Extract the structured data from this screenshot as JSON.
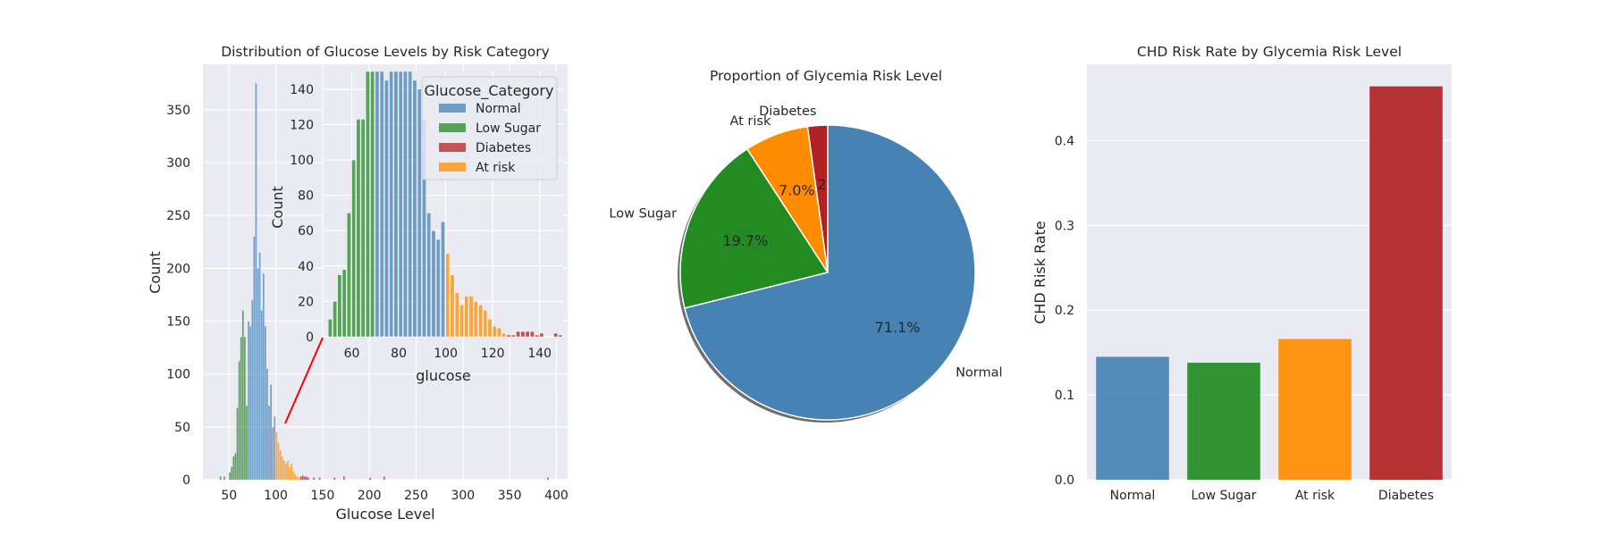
{
  "chart_data": [
    {
      "type": "bar",
      "title": "Distribution of Glucose Levels by Risk Category",
      "xlabel": "Glucose Level",
      "ylabel": "Count",
      "xlim": [
        22,
        412
      ],
      "ylim": [
        0,
        393
      ],
      "xticks": [
        50,
        100,
        150,
        200,
        250,
        300,
        350,
        400
      ],
      "yticks": [
        0,
        50,
        100,
        150,
        200,
        250,
        300,
        350
      ],
      "bin_width": 2,
      "series": [
        {
          "name": "Normal",
          "color": "#4682b4",
          "bins": [
            [
              70,
              150
            ],
            [
              72,
              145
            ],
            [
              74,
              170
            ],
            [
              76,
              230
            ],
            [
              78,
              375
            ],
            [
              80,
              200
            ],
            [
              82,
              215
            ],
            [
              84,
              160
            ],
            [
              86,
              195
            ],
            [
              88,
              145
            ],
            [
              90,
              105
            ],
            [
              92,
              70
            ],
            [
              94,
              90
            ],
            [
              96,
              50
            ],
            [
              98,
              60
            ]
          ]
        },
        {
          "name": "Low Sugar",
          "color": "#228b22",
          "bins": [
            [
              40,
              3
            ],
            [
              44,
              3
            ],
            [
              50,
              7
            ],
            [
              52,
              12
            ],
            [
              54,
              22
            ],
            [
              56,
              25
            ],
            [
              58,
              68
            ],
            [
              60,
              112
            ],
            [
              62,
              135
            ],
            [
              64,
              160
            ],
            [
              66,
              135
            ],
            [
              68,
              70
            ]
          ]
        },
        {
          "name": "Diabetes",
          "color": "#b22222",
          "bins": [
            [
              126,
              3
            ],
            [
              128,
              4
            ],
            [
              130,
              3
            ],
            [
              132,
              3
            ],
            [
              134,
              2
            ],
            [
              140,
              2
            ],
            [
              146,
              2
            ],
            [
              162,
              2
            ],
            [
              172,
              3
            ],
            [
              200,
              2
            ],
            [
              215,
              3
            ],
            [
              390,
              2
            ]
          ]
        },
        {
          "name": "At risk",
          "color": "#ff8c00",
          "bins": [
            [
              100,
              45
            ],
            [
              102,
              35
            ],
            [
              104,
              28
            ],
            [
              106,
              22
            ],
            [
              108,
              18
            ],
            [
              110,
              15
            ],
            [
              112,
              18
            ],
            [
              114,
              12
            ],
            [
              116,
              15
            ],
            [
              118,
              8
            ],
            [
              120,
              5
            ],
            [
              122,
              3
            ],
            [
              124,
              2
            ]
          ]
        }
      ],
      "inset": {
        "xlabel": "glucose",
        "ylabel": "Count",
        "xlim": [
          48,
          150
        ],
        "ylim": [
          0,
          150
        ],
        "xticks": [
          60,
          80,
          100,
          120,
          140
        ],
        "yticks": [
          0,
          20,
          40,
          60,
          80,
          100,
          120,
          140
        ],
        "bin_width": 2,
        "bins": [
          {
            "x": 50,
            "y": 10,
            "c": "Low Sugar"
          },
          {
            "x": 52,
            "y": 20,
            "c": "Low Sugar"
          },
          {
            "x": 54,
            "y": 35,
            "c": "Low Sugar"
          },
          {
            "x": 56,
            "y": 38,
            "c": "Low Sugar"
          },
          {
            "x": 58,
            "y": 70,
            "c": "Low Sugar"
          },
          {
            "x": 60,
            "y": 100,
            "c": "Low Sugar"
          },
          {
            "x": 62,
            "y": 123,
            "c": "Low Sugar"
          },
          {
            "x": 64,
            "y": 123,
            "c": "Low Sugar"
          },
          {
            "x": 66,
            "y": 155,
            "c": "Low Sugar"
          },
          {
            "x": 68,
            "y": 155,
            "c": "Low Sugar"
          },
          {
            "x": 70,
            "y": 155,
            "c": "Normal"
          },
          {
            "x": 72,
            "y": 155,
            "c": "Normal"
          },
          {
            "x": 74,
            "y": 145,
            "c": "Normal"
          },
          {
            "x": 76,
            "y": 155,
            "c": "Normal"
          },
          {
            "x": 78,
            "y": 155,
            "c": "Normal"
          },
          {
            "x": 80,
            "y": 155,
            "c": "Normal"
          },
          {
            "x": 82,
            "y": 155,
            "c": "Normal"
          },
          {
            "x": 84,
            "y": 155,
            "c": "Normal"
          },
          {
            "x": 86,
            "y": 145,
            "c": "Normal"
          },
          {
            "x": 88,
            "y": 140,
            "c": "Normal"
          },
          {
            "x": 90,
            "y": 123,
            "c": "Normal"
          },
          {
            "x": 92,
            "y": 70,
            "c": "Normal"
          },
          {
            "x": 94,
            "y": 60,
            "c": "Normal"
          },
          {
            "x": 96,
            "y": 55,
            "c": "Normal"
          },
          {
            "x": 98,
            "y": 65,
            "c": "Normal"
          },
          {
            "x": 100,
            "y": 47,
            "c": "At risk"
          },
          {
            "x": 102,
            "y": 35,
            "c": "At risk"
          },
          {
            "x": 104,
            "y": 25,
            "c": "At risk"
          },
          {
            "x": 106,
            "y": 18,
            "c": "At risk"
          },
          {
            "x": 108,
            "y": 23,
            "c": "At risk"
          },
          {
            "x": 110,
            "y": 23,
            "c": "At risk"
          },
          {
            "x": 112,
            "y": 20,
            "c": "At risk"
          },
          {
            "x": 114,
            "y": 18,
            "c": "At risk"
          },
          {
            "x": 116,
            "y": 15,
            "c": "At risk"
          },
          {
            "x": 118,
            "y": 10,
            "c": "At risk"
          },
          {
            "x": 120,
            "y": 6,
            "c": "At risk"
          },
          {
            "x": 122,
            "y": 5,
            "c": "At risk"
          },
          {
            "x": 124,
            "y": 2,
            "c": "At risk"
          },
          {
            "x": 126,
            "y": 1,
            "c": "Diabetes"
          },
          {
            "x": 128,
            "y": 1,
            "c": "Diabetes"
          },
          {
            "x": 130,
            "y": 3,
            "c": "Diabetes"
          },
          {
            "x": 132,
            "y": 3,
            "c": "Diabetes"
          },
          {
            "x": 134,
            "y": 3,
            "c": "Diabetes"
          },
          {
            "x": 136,
            "y": 3,
            "c": "Diabetes"
          },
          {
            "x": 138,
            "y": 1,
            "c": "Diabetes"
          },
          {
            "x": 140,
            "y": 2,
            "c": "Diabetes"
          },
          {
            "x": 146,
            "y": 2,
            "c": "Diabetes"
          },
          {
            "x": 148,
            "y": 1,
            "c": "Diabetes"
          }
        ],
        "legend": {
          "title": "Glucose_Category",
          "placement": "top-right",
          "entries": [
            "Normal",
            "Low Sugar",
            "Diabetes",
            "At risk"
          ]
        }
      }
    },
    {
      "type": "pie",
      "title": "Proportion of Glycemia Risk Level",
      "shadow": true,
      "start_angle_deg": 90,
      "slices": [
        {
          "label": "Diabetes",
          "value": 2.2,
          "pct_label": "2.2%",
          "color": "#b22222"
        },
        {
          "label": "At risk",
          "value": 7.0,
          "pct_label": "7.0%",
          "color": "#ff8c00"
        },
        {
          "label": "Low Sugar",
          "value": 19.7,
          "pct_label": "19.7%",
          "color": "#228b22"
        },
        {
          "label": "Normal",
          "value": 71.1,
          "pct_label": "71.1%",
          "color": "#4682b4"
        }
      ]
    },
    {
      "type": "bar",
      "title": "CHD Risk Rate by Glycemia Risk Level",
      "xlabel": "",
      "ylabel": "CHD Risk Rate",
      "ylim": [
        0,
        0.49
      ],
      "yticks": [
        "0.0",
        "0.1",
        "0.2",
        "0.3",
        "0.4"
      ],
      "categories": [
        "Normal",
        "Low Sugar",
        "At risk",
        "Diabetes"
      ],
      "values": [
        0.145,
        0.138,
        0.166,
        0.464
      ],
      "colors": [
        "#4682b4",
        "#228b22",
        "#ff8c00",
        "#b22222"
      ]
    }
  ]
}
